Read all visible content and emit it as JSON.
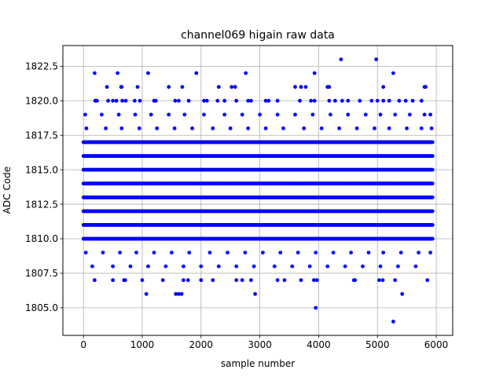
{
  "chart_data": {
    "type": "scatter",
    "title": "channel069 higain raw data",
    "xlabel": "sample number",
    "ylabel": "ADC Code",
    "xlim": [
      -350,
      6280
    ],
    "ylim": [
      1803.0,
      1824.0
    ],
    "xticks": [
      0,
      1000,
      2000,
      3000,
      4000,
      5000,
      6000
    ],
    "yticks": [
      1805.0,
      1807.5,
      1810.0,
      1812.5,
      1815.0,
      1817.5,
      1820.0,
      1822.5
    ],
    "xtick_labels": [
      "0",
      "1000",
      "2000",
      "3000",
      "4000",
      "5000",
      "6000"
    ],
    "ytick_labels": [
      "1805.0",
      "1807.5",
      "1810.0",
      "1812.5",
      "1815.0",
      "1817.5",
      "1820.0",
      "1822.5"
    ],
    "grid": true,
    "marker_color": "#0000ff",
    "x_range": [
      0,
      5940
    ],
    "dense_levels": [
      1810,
      1811,
      1812,
      1813,
      1814,
      1815,
      1816,
      1817
    ],
    "sparse_levels": [
      {
        "y": 1819,
        "x": [
          30,
          310,
          600,
          880,
          1150,
          1450,
          1720,
          2050,
          2400,
          2700,
          3000,
          3300,
          3600,
          3900,
          4200,
          4500,
          4800,
          5050,
          5300,
          5550,
          5800,
          5900
        ]
      },
      {
        "y": 1818,
        "x": [
          50,
          380,
          650,
          950,
          1250,
          1550,
          1850,
          2200,
          2500,
          2800,
          3100,
          3400,
          3750,
          4050,
          4350,
          4650,
          4950,
          5200,
          5500,
          5750,
          5920
        ]
      },
      {
        "y": 1809,
        "x": [
          40,
          330,
          620,
          900,
          1200,
          1500,
          1800,
          2150,
          2450,
          2750,
          3050,
          3350,
          3650,
          3950,
          4250,
          4550,
          4850,
          5100,
          5400,
          5700,
          5900
        ]
      },
      {
        "y": 1808,
        "x": [
          150,
          500,
          800,
          1100,
          1400,
          1700,
          2000,
          2300,
          2600,
          2900,
          3250,
          3550,
          3850,
          4150,
          4450,
          4750,
          5050,
          5350,
          5650
        ]
      },
      {
        "y": 1820,
        "x": [
          200,
          230,
          420,
          500,
          560,
          660,
          720,
          870,
          960,
          1200,
          1230,
          1560,
          1620,
          1790,
          2050,
          2100,
          2280,
          2400,
          2600,
          2800,
          2850,
          3100,
          3150,
          3300,
          3680,
          3870,
          3930,
          4180,
          4280,
          4400,
          4500,
          4700,
          4900,
          5000,
          5100,
          5200,
          5370,
          5480,
          5600,
          5750
        ]
      },
      {
        "y": 1821,
        "x": [
          400,
          640,
          650,
          920,
          1450,
          1680,
          2300,
          2520,
          2580,
          3600,
          3700,
          3780,
          4150,
          4180,
          5100,
          5800,
          5820
        ]
      },
      {
        "y": 1822,
        "x": [
          190,
          580,
          1100,
          1920,
          2760,
          3930,
          5270
        ]
      },
      {
        "y": 1823,
        "x": [
          4380,
          4980
        ]
      },
      {
        "y": 1807,
        "x": [
          190,
          500,
          690,
          710,
          1000,
          1350,
          1700,
          1780,
          2000,
          2200,
          2600,
          2700,
          2850,
          3300,
          3420,
          3700,
          3920,
          3970,
          4600,
          4620,
          5030,
          5090,
          5300,
          5850
        ]
      },
      {
        "y": 1806,
        "x": [
          1070,
          1570,
          1620,
          1670,
          2920,
          5420
        ]
      },
      {
        "y": 1805,
        "x": [
          3950
        ]
      },
      {
        "y": 1804,
        "x": [
          5270
        ]
      }
    ]
  }
}
